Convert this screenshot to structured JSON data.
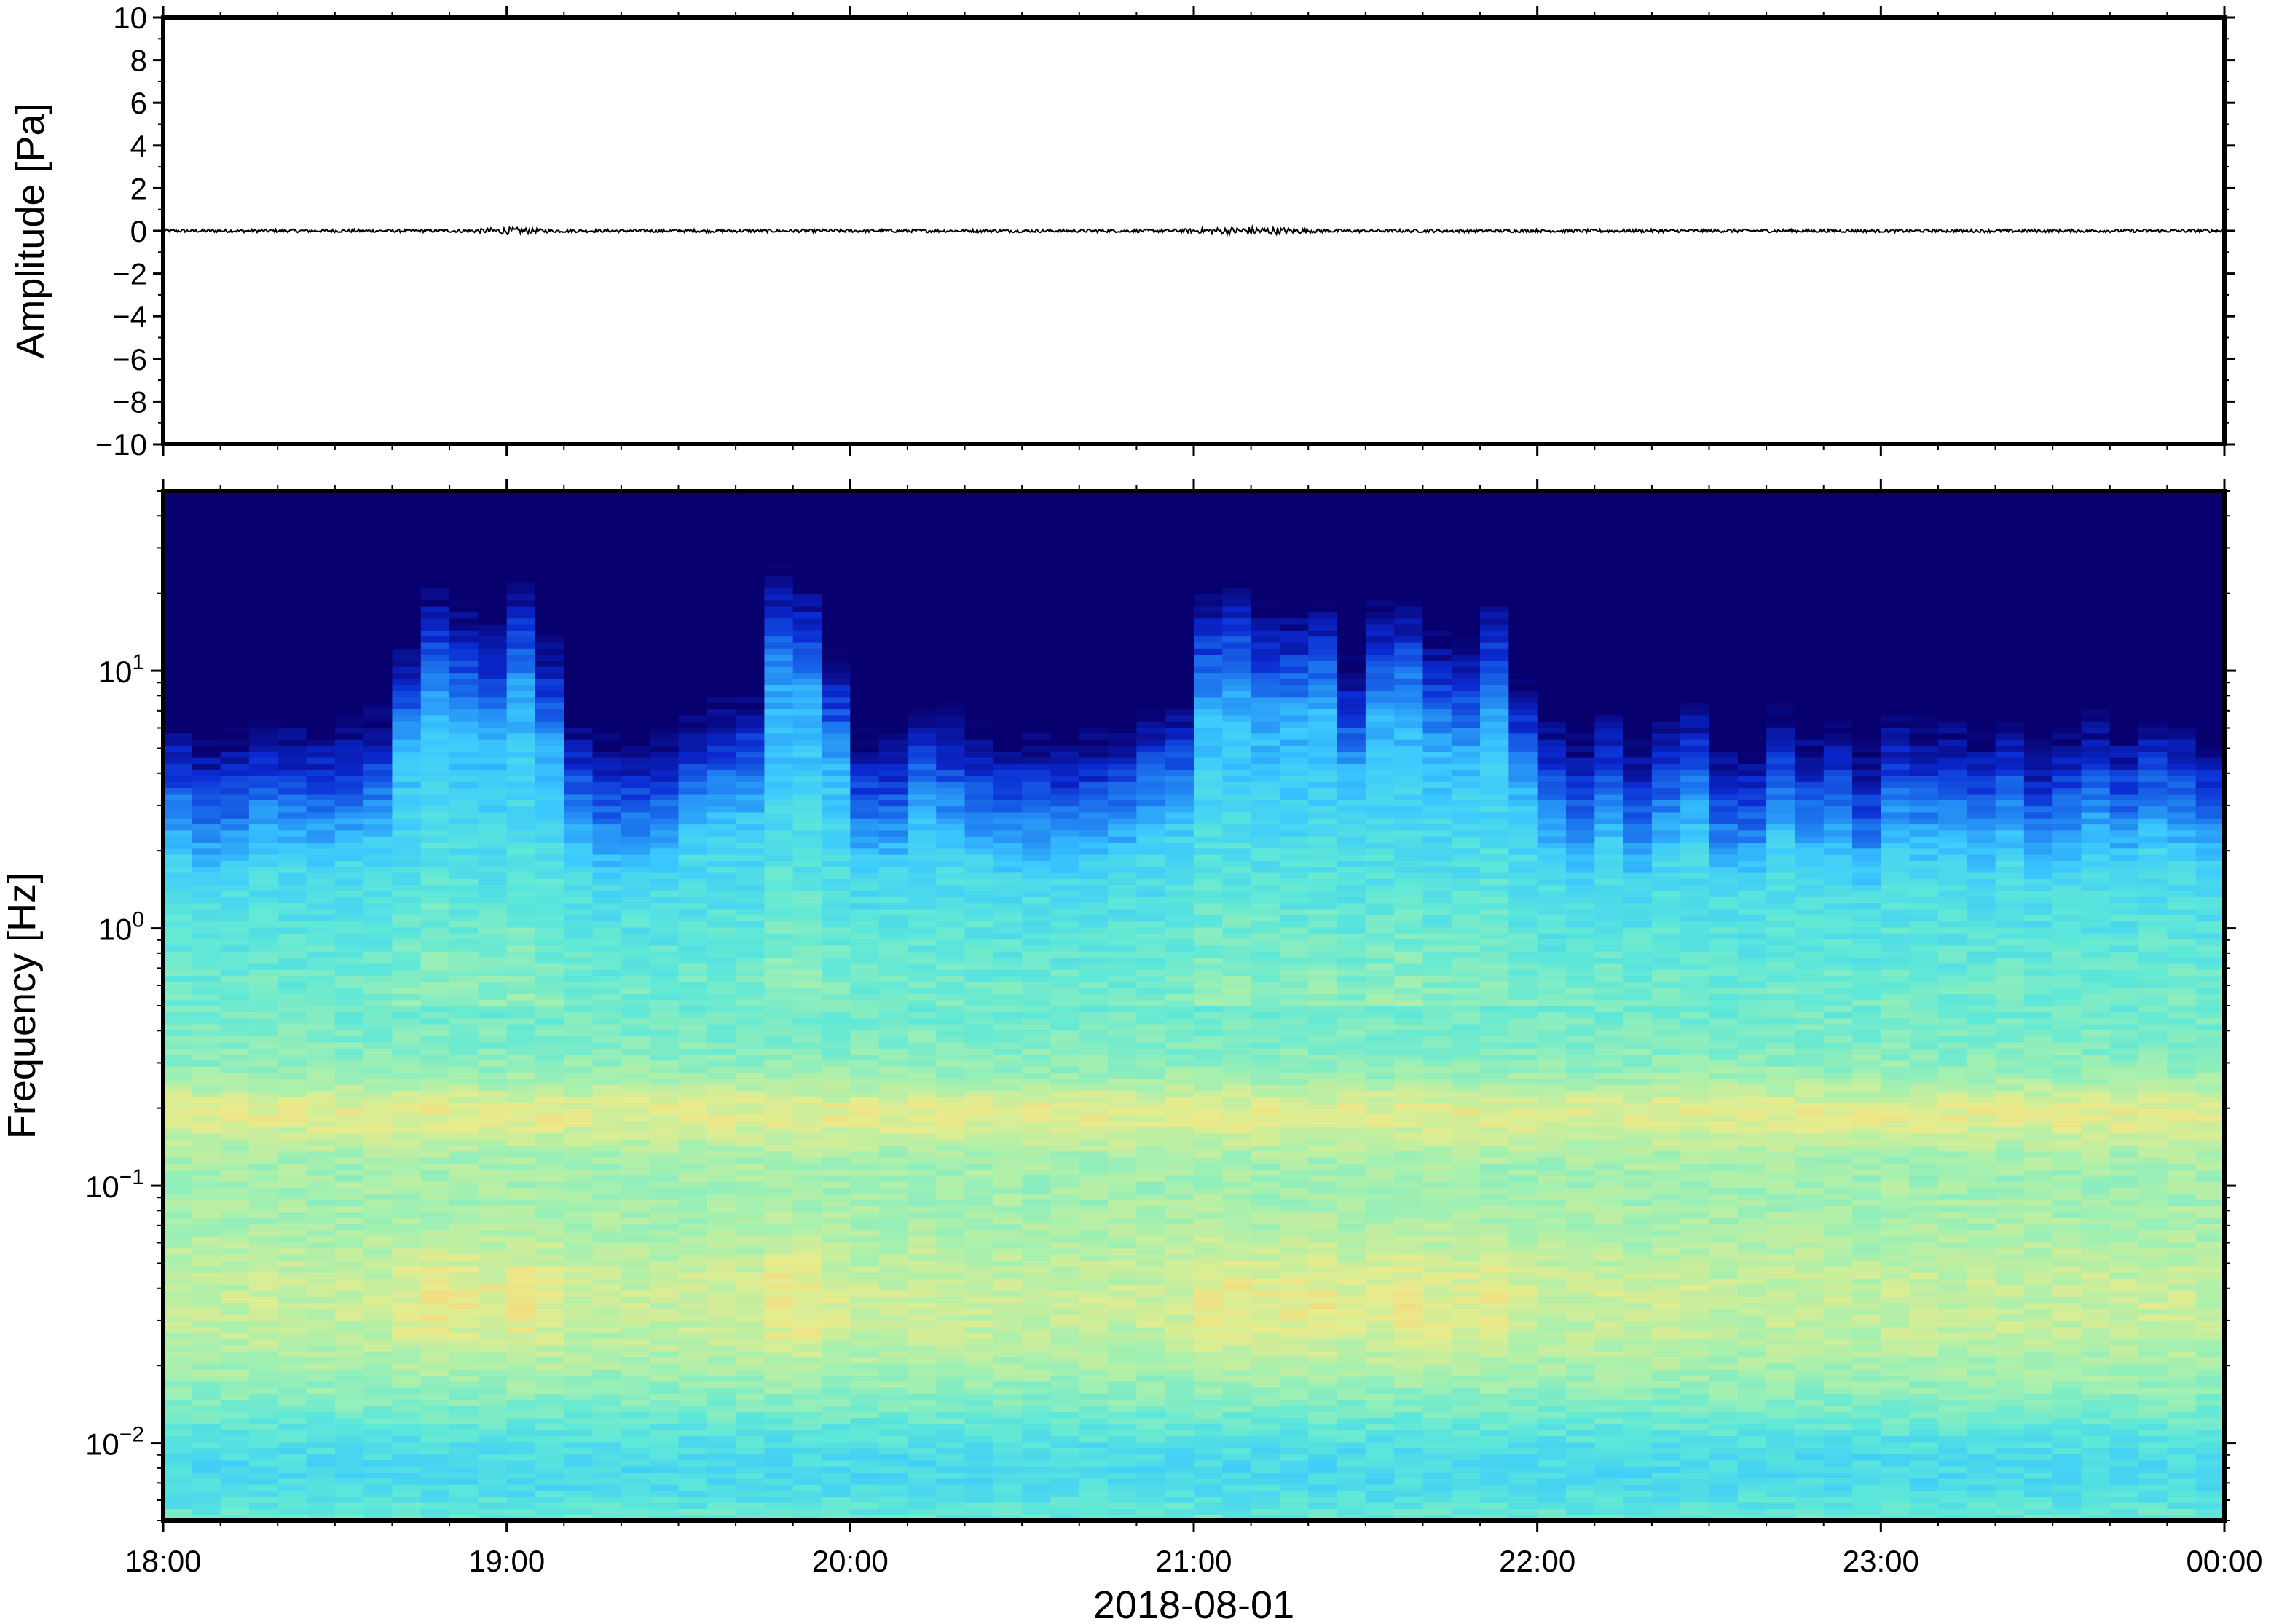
{
  "chart_data": [
    {
      "type": "line",
      "title": "",
      "xlabel": "",
      "ylabel": "Amplitude [Pa]",
      "ylim": [
        -10,
        10
      ],
      "yticks": [
        10,
        8,
        6,
        4,
        2,
        0,
        -2,
        -4,
        -6,
        -8,
        -10
      ],
      "ytick_labels": [
        "10",
        "8",
        "6",
        "4",
        "2",
        "0",
        "−2",
        "−4",
        "−6",
        "−8",
        "−10"
      ],
      "x_range": [
        "18:00",
        "00:00"
      ],
      "grid": false,
      "series": [
        {
          "x_start": "18:00",
          "x_end": "00:00",
          "baseline": 0,
          "approx_peak_amplitude": 0.15,
          "color": "#000000"
        }
      ]
    },
    {
      "type": "heatmap",
      "title": "",
      "xlabel": "2018-08-01",
      "ylabel": "Frequency [Hz]",
      "y_scale": "log",
      "ylim": [
        0.005,
        50
      ],
      "yticks": [
        {
          "value": 10,
          "base": "10",
          "exp": "1"
        },
        {
          "value": 1,
          "base": "10",
          "exp": "0"
        },
        {
          "value": 0.1,
          "base": "10",
          "exp": "−1"
        },
        {
          "value": 0.01,
          "base": "10",
          "exp": "−2"
        }
      ],
      "xticks": [
        "18:00",
        "19:00",
        "20:00",
        "21:00",
        "22:00",
        "23:00",
        "00:00"
      ],
      "colormap": [
        "#08006e",
        "#0a2ad2",
        "#1e7cf0",
        "#3ac8ff",
        "#5ee8d8",
        "#a4f0b0",
        "#e8ec8c",
        "#fcc870",
        "#f88c50"
      ],
      "note_columns_minutes": 5,
      "grid": false
    }
  ]
}
